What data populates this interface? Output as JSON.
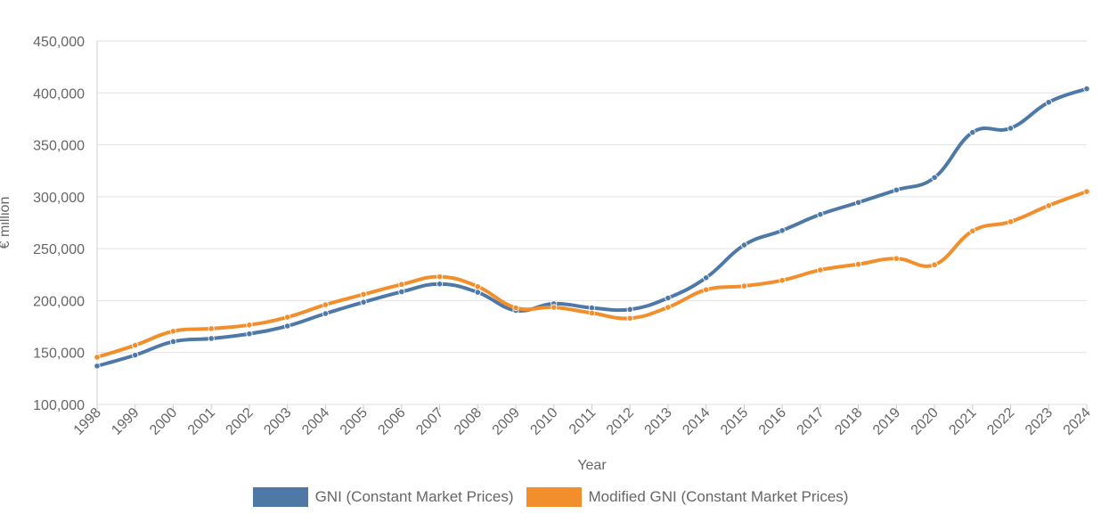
{
  "chart_data": {
    "type": "line",
    "x": [
      "1998",
      "1999",
      "2000",
      "2001",
      "2002",
      "2003",
      "2004",
      "2005",
      "2006",
      "2007",
      "2008",
      "2009",
      "2010",
      "2011",
      "2012",
      "2013",
      "2014",
      "2015",
      "2016",
      "2017",
      "2018",
      "2019",
      "2020",
      "2021",
      "2022",
      "2023",
      "2024"
    ],
    "series": [
      {
        "name": "GNI (Constant Market Prices)",
        "color": "#4e79a7",
        "values": [
          137000,
          147500,
          160500,
          163500,
          168000,
          175500,
          187500,
          198500,
          208500,
          216000,
          208000,
          190500,
          197000,
          193000,
          191500,
          202500,
          222000,
          253500,
          267500,
          283000,
          294500,
          306500,
          318500,
          362000,
          366000,
          391000,
          404000
        ]
      },
      {
        "name": "Modified GNI (Constant Market Prices)",
        "color": "#f28e2b",
        "values": [
          145500,
          157000,
          170500,
          173000,
          176500,
          184000,
          196000,
          206000,
          215500,
          223000,
          213500,
          193000,
          193500,
          188000,
          183000,
          193500,
          210500,
          214000,
          219500,
          229500,
          235000,
          240500,
          234500,
          267000,
          276000,
          291500,
          305000
        ]
      }
    ],
    "xlabel": "Year",
    "ylabel": "€ million",
    "ylim": [
      100000,
      450000
    ],
    "yticks": [
      "100,000",
      "150,000",
      "200,000",
      "250,000",
      "300,000",
      "350,000",
      "400,000",
      "450,000"
    ],
    "ytick_values": [
      100000,
      150000,
      200000,
      250000,
      300000,
      350000,
      400000,
      450000
    ],
    "grid": "horizontal",
    "legend_position": "bottom"
  }
}
